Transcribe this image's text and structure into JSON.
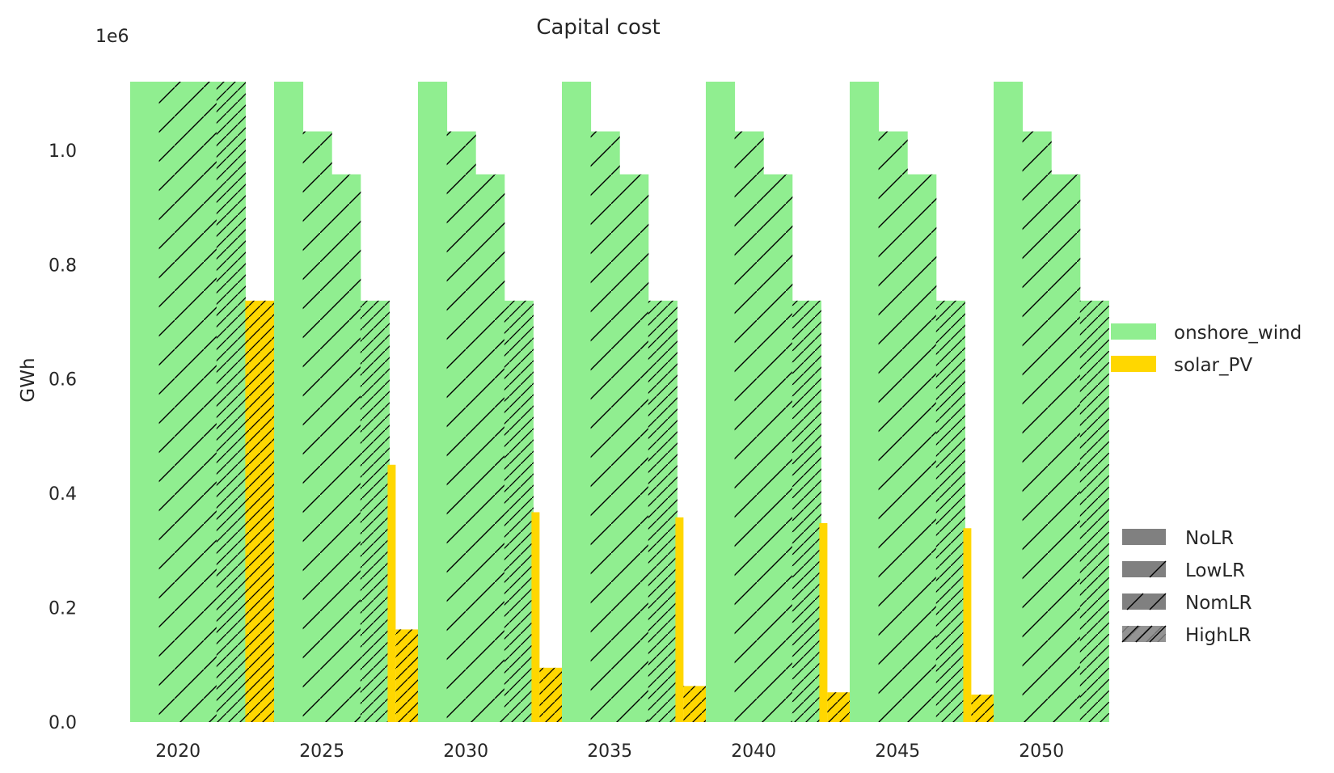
{
  "colors": {
    "onshore_wind": "#90ee90",
    "solar_PV": "#ffd700",
    "hatch": "#000000",
    "legend_scenario": "#808080"
  },
  "chart_data": {
    "type": "bar",
    "title": "Capital cost",
    "xlabel": "",
    "ylabel": "GWh",
    "y_offset_text": "1e6",
    "ylim": [
      0,
      1.12
    ],
    "y_unit_scale": 1000000,
    "yticks": [
      0.0,
      0.2,
      0.4,
      0.6,
      0.8,
      1.0
    ],
    "ytick_labels": [
      "0.0",
      "0.2",
      "0.4",
      "0.6",
      "0.8",
      "1.0"
    ],
    "categories": [
      "2020",
      "2025",
      "2030",
      "2035",
      "2040",
      "2045",
      "2050"
    ],
    "scenarios": [
      "NoLR",
      "LowLR",
      "NomLR",
      "HighLR"
    ],
    "technologies": [
      "onshore_wind",
      "solar_PV"
    ],
    "series": [
      {
        "name": "onshore_wind",
        "scenario_values": {
          "NoLR": [
            1.12,
            1.12,
            1.12,
            1.12,
            1.12,
            1.12,
            1.12
          ],
          "LowLR": [
            1.12,
            1.033,
            1.033,
            1.033,
            1.033,
            1.033,
            1.033
          ],
          "NomLR": [
            1.12,
            0.958,
            0.958,
            0.958,
            0.958,
            0.958,
            0.958
          ],
          "HighLR": [
            1.12,
            0.737,
            0.737,
            0.737,
            0.737,
            0.737,
            0.737
          ]
        }
      },
      {
        "name": "solar_PV",
        "scenario_values": {
          "NoLR": [
            0.737,
            0.45,
            0.367,
            0.358,
            0.348,
            0.339,
            0.0
          ],
          "LowLR": [
            0.737,
            0.162,
            0.095,
            0.063,
            0.052,
            0.048,
            0.0
          ],
          "NomLR": [
            0.737,
            0.162,
            0.095,
            0.063,
            0.052,
            0.048,
            0.0
          ],
          "HighLR": [
            0.737,
            0.162,
            0.095,
            0.063,
            0.052,
            0.048,
            0.0
          ]
        }
      }
    ],
    "legend_technology": {
      "placement": "right",
      "entries": [
        "onshore_wind",
        "solar_PV"
      ]
    },
    "legend_scenario": {
      "placement": "lower-right",
      "entries": [
        "NoLR",
        "LowLR",
        "NomLR",
        "HighLR"
      ]
    },
    "grid": false
  }
}
